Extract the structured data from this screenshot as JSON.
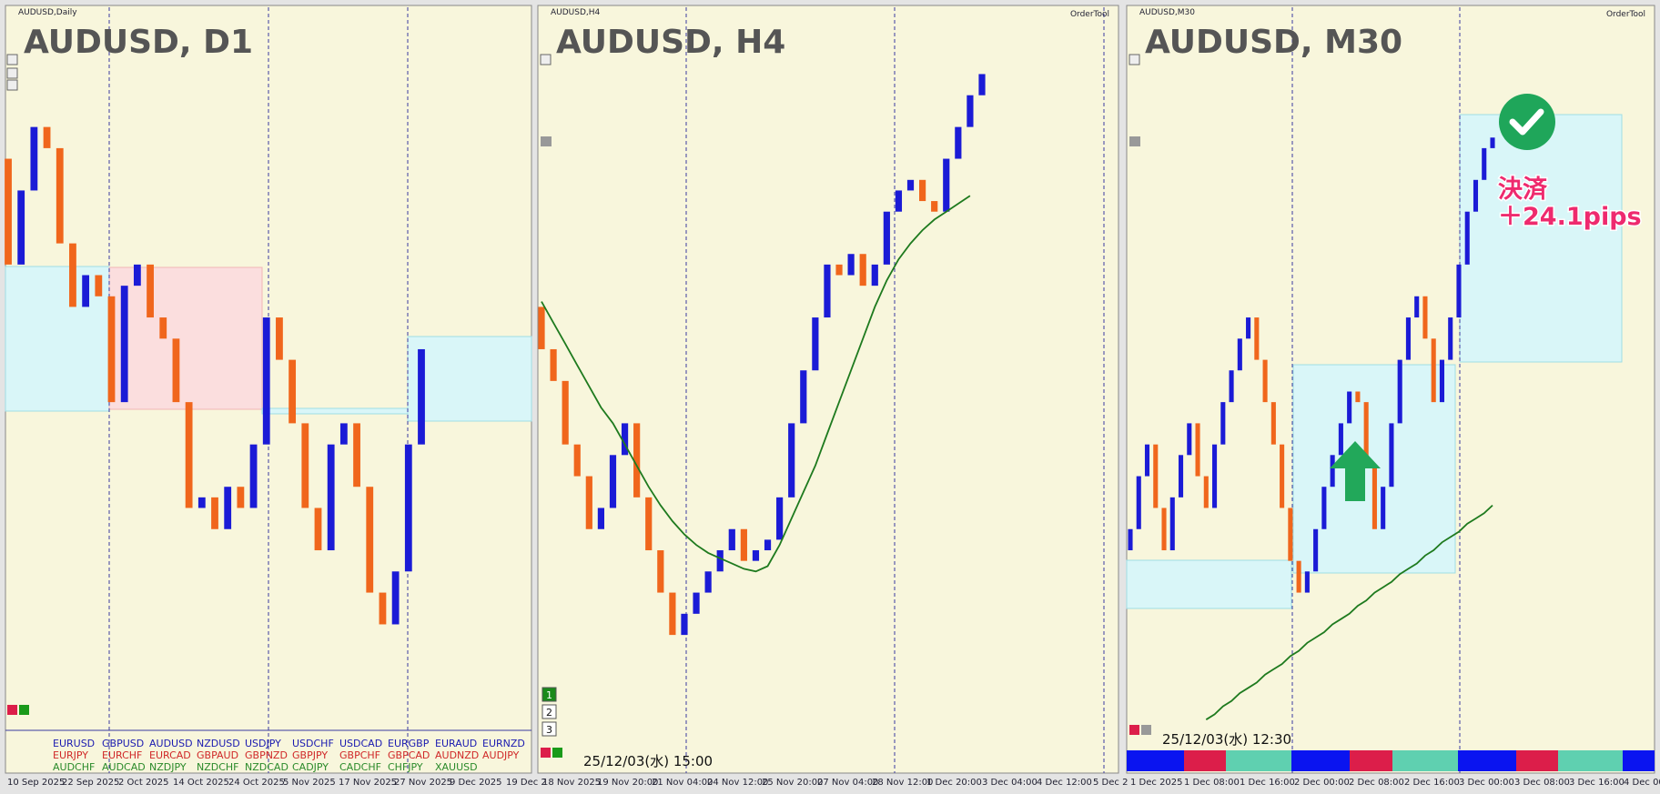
{
  "candle_colors": {
    "up": "#1b1bd6",
    "down": "#f0661c",
    "ma": "#1e7a1e"
  },
  "panels": [
    {
      "header": "AUDUSD,Daily",
      "title": "AUDUSD, D1",
      "x_labels": [
        "10 Sep 2025",
        "22 Sep 2025",
        "2 Oct 2025",
        "14 Oct 2025",
        "24 Oct 2025",
        "5 Nov 2025",
        "17 Nov 2025",
        "27 Nov 2025",
        "9 Dec 2025",
        "19 Dec 2"
      ],
      "ylim": [
        0.6404,
        0.67
      ],
      "open": 0.664,
      "closes": [
        0.66,
        0.6628,
        0.6652,
        0.6644,
        0.6608,
        0.6584,
        0.6596,
        0.6588,
        0.6548,
        0.6592,
        0.66,
        0.658,
        0.6572,
        0.6548,
        0.6508,
        0.6512,
        0.65,
        0.6516,
        0.6508,
        0.6532,
        0.658,
        0.6564,
        0.654,
        0.6508,
        0.6492,
        0.6532,
        0.654,
        0.6516,
        0.6476,
        0.6464,
        0.6484,
        0.6532,
        0.6568
      ],
      "symbols": [
        [
          "EURUSD",
          "GBPUSD",
          "AUDUSD",
          "NZDUSD",
          "USDJPY",
          "USDCHF",
          "USDCAD",
          "EURGBP",
          "EURAUD",
          "EURNZD"
        ],
        [
          "EURJPY",
          "EURCHF",
          "EURCAD",
          "GBPAUD",
          "GBPNZD",
          "GBPJPY",
          "GBPCHF",
          "GBPCAD",
          "AUDNZD",
          "AUDJPY"
        ],
        [
          "AUDCHF",
          "AUDCAD",
          "NZDJPY",
          "NZDCHF",
          "NZDCAD",
          "CADJPY",
          "CADCHF",
          "CHFJPY",
          "XAUUSD"
        ]
      ]
    },
    {
      "header": "AUDUSD,H4",
      "title": "AUDUSD, H4",
      "tool": "OrderTool",
      "x_labels": [
        "18 Nov 2025",
        "19 Nov 20:00",
        "21 Nov 04:00",
        "24 Nov 12:00",
        "25 Nov 20:00",
        "27 Nov 04:00",
        "28 Nov 12:00",
        "1 Dec 20:00",
        "3 Dec 04:00",
        "4 Dec 12:00",
        "5 Dec 2"
      ],
      "ylim": [
        0.6404,
        0.67
      ],
      "open": 0.6584,
      "closes": [
        0.6568,
        0.6556,
        0.6532,
        0.652,
        0.65,
        0.6508,
        0.6528,
        0.654,
        0.6512,
        0.6492,
        0.6476,
        0.646,
        0.6468,
        0.6476,
        0.6484,
        0.6492,
        0.65,
        0.6488,
        0.6492,
        0.6496,
        0.6512,
        0.654,
        0.656,
        0.658,
        0.66,
        0.6596,
        0.6604,
        0.6592,
        0.66,
        0.662,
        0.6628,
        0.6632,
        0.6624,
        0.662,
        0.664,
        0.6652,
        0.6664,
        0.6672
      ],
      "ma": [
        0.6586,
        0.6578,
        0.657,
        0.6562,
        0.6554,
        0.6546,
        0.654,
        0.6532,
        0.6524,
        0.6516,
        0.6509,
        0.6503,
        0.6498,
        0.6494,
        0.6491,
        0.6489,
        0.6487,
        0.6485,
        0.6484,
        0.6486,
        0.6494,
        0.6504,
        0.6514,
        0.6524,
        0.6536,
        0.6548,
        0.656,
        0.6572,
        0.6584,
        0.6594,
        0.6602,
        0.6608,
        0.6613,
        0.6617,
        0.662,
        0.6623,
        0.6626,
        null
      ],
      "buttons": [
        "1",
        "2",
        "3"
      ],
      "timestamp": "25/12/03(水) 15:00"
    },
    {
      "header": "AUDUSD,M30",
      "title": "AUDUSD, M30",
      "tool": "OrderTool",
      "x_labels": [
        "1 Dec 2025",
        "1 Dec 08:00",
        "1 Dec 16:00",
        "2 Dec 00:00",
        "2 Dec 08:00",
        "2 Dec 16:00",
        "3 Dec 00:00",
        "3 Dec 08:00",
        "3 Dec 16:00",
        "4 Dec 00"
      ],
      "ylim": [
        0.6404,
        0.67
      ],
      "open": 0.6492,
      "closes": [
        0.65,
        0.652,
        0.6532,
        0.6508,
        0.6492,
        0.6512,
        0.6528,
        0.654,
        0.652,
        0.6508,
        0.6532,
        0.6548,
        0.656,
        0.6572,
        0.658,
        0.6564,
        0.6548,
        0.6532,
        0.6508,
        0.6488,
        0.6476,
        0.6484,
        0.65,
        0.6516,
        0.6528,
        0.654,
        0.6552,
        0.6548,
        0.6524,
        0.65,
        0.6516,
        0.654,
        0.6564,
        0.658,
        0.6588,
        0.6572,
        0.6548,
        0.6564,
        0.658,
        0.66,
        0.662,
        0.6632,
        0.6644,
        0.6648
      ],
      "ma": [
        null,
        null,
        null,
        null,
        null,
        null,
        null,
        null,
        null,
        0.6428,
        0.643,
        0.6433,
        0.6435,
        0.6438,
        0.644,
        0.6442,
        0.6445,
        0.6447,
        0.6449,
        0.6452,
        0.6454,
        0.6457,
        0.6459,
        0.6461,
        0.6464,
        0.6466,
        0.6468,
        0.6471,
        0.6473,
        0.6476,
        0.6478,
        0.648,
        0.6483,
        0.6485,
        0.6487,
        0.649,
        0.6492,
        0.6495,
        0.6497,
        0.6499,
        0.6502,
        0.6504,
        0.6506,
        0.6509
      ],
      "timestamp": "25/12/03(水) 12:30",
      "annotation": {
        "label": "決済",
        "result": "＋24.1pips"
      }
    }
  ]
}
